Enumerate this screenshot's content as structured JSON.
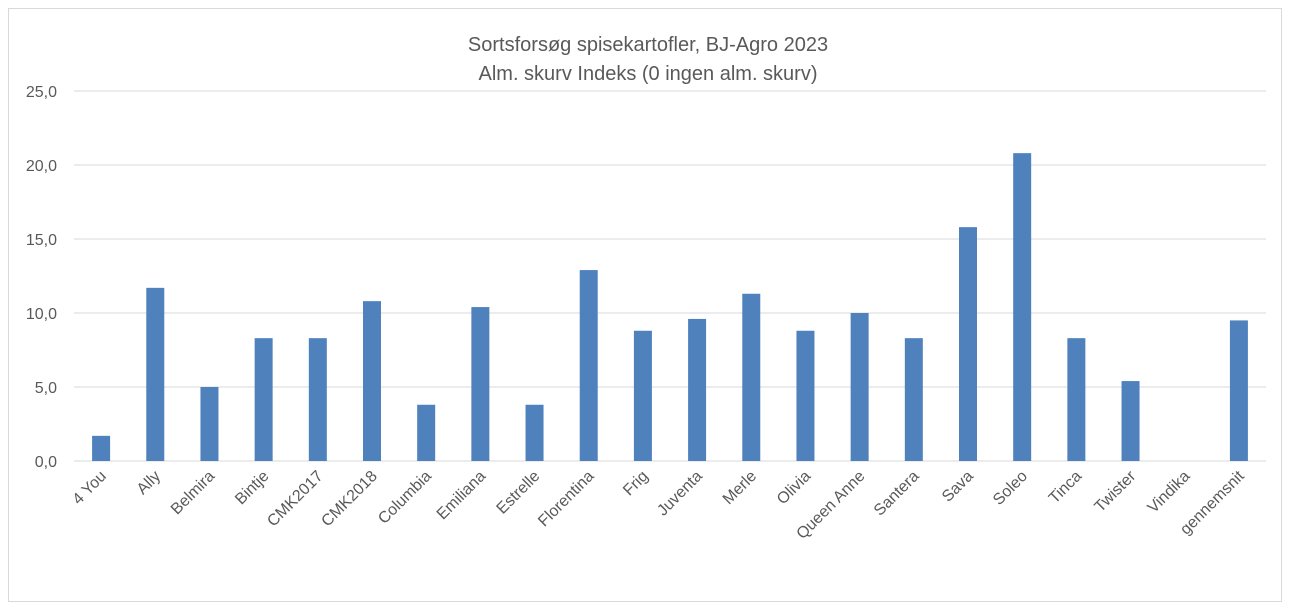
{
  "chart_data": {
    "type": "bar",
    "title": "Sortsforsøg spisekartofler, BJ-Agro 2023",
    "subtitle": "Alm. skurv Indeks (0 ingen alm. skurv)",
    "categories": [
      "4 You",
      "Ally",
      "Belmira",
      "Bintje",
      "CMK2017",
      "CMK2018",
      "Columbia",
      "Emiliana",
      "Estrelle",
      "Florentina",
      "Frig",
      "Juventa",
      "Merle",
      "Olivia",
      "Queen Anne",
      "Santera",
      "Sava",
      "Soleo",
      "Tinca",
      "Twister",
      "Vindika",
      "gennemsnit"
    ],
    "values": [
      1.7,
      11.7,
      5.0,
      8.3,
      8.3,
      10.8,
      3.8,
      10.4,
      3.8,
      12.9,
      8.8,
      9.6,
      11.3,
      8.8,
      10.0,
      8.3,
      15.8,
      20.8,
      8.3,
      5.4,
      0.0,
      9.5
    ],
    "yticks": [
      "0,0",
      "5,0",
      "10,0",
      "15,0",
      "20,0",
      "25,0"
    ],
    "ylim": [
      0,
      25
    ],
    "grid": true,
    "bar_color": "#4f81bd",
    "grid_color": "#d9d9d9"
  }
}
